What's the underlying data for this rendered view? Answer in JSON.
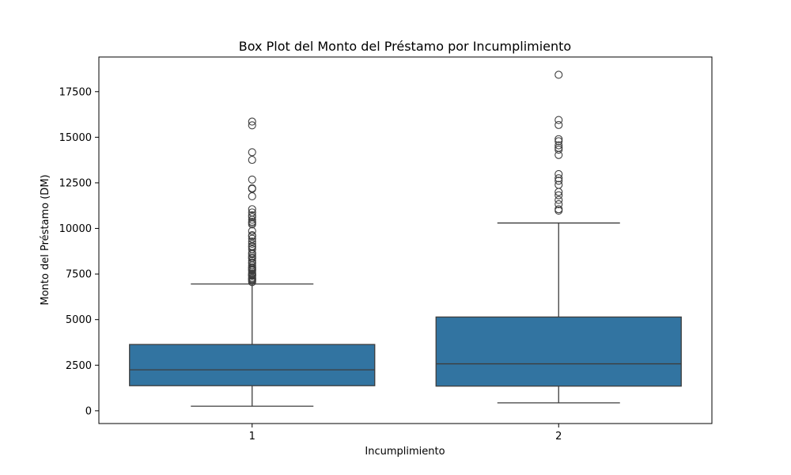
{
  "chart_data": {
    "type": "box",
    "title": "Box Plot del Monto del Préstamo por Incumplimiento",
    "xlabel": "Incumplimiento",
    "ylabel": "Monto del Préstamo (DM)",
    "ylim": [
      -700,
      19400
    ],
    "yticks": [
      0,
      2500,
      5000,
      7500,
      10000,
      12500,
      15000,
      17500
    ],
    "ytick_labels": [
      "0",
      "2500",
      "5000",
      "7500",
      "10000",
      "12500",
      "15000",
      "17500"
    ],
    "grid": false,
    "legend": "none",
    "colors": {
      "box_fill": "#3274a1",
      "line": "#3d3d3d",
      "frame": "#000000"
    },
    "categories": [
      "1",
      "2"
    ],
    "boxes": [
      {
        "category": "1",
        "whisker_low": 250,
        "q1": 1375,
        "median": 2245,
        "q3": 3635,
        "whisker_high": 6950,
        "outliers": [
          15857,
          15653,
          14179,
          13756,
          12680,
          12169,
          12204,
          11760,
          11054,
          10875,
          10722,
          10623,
          10477,
          10366,
          10297,
          10222,
          9857,
          9629,
          9572,
          9436,
          9283,
          9157,
          9034,
          8978,
          8858,
          8648,
          8588,
          8471,
          8386,
          8358,
          8229,
          8133,
          8086,
          7966,
          7865,
          7824,
          7758,
          7721,
          7685,
          7596,
          7511,
          7476,
          7432,
          7408,
          7393,
          7297,
          7238,
          7228,
          7174,
          7127,
          7057
        ]
      },
      {
        "category": "2",
        "whisker_low": 433,
        "q1": 1352,
        "median": 2574,
        "q3": 5142,
        "whisker_high": 10297,
        "outliers": [
          18424,
          15945,
          15672,
          14896,
          14782,
          14555,
          14421,
          14318,
          14027,
          12976,
          12749,
          12612,
          12389,
          11998,
          11816,
          11560,
          11328,
          11054,
          10974
        ]
      }
    ]
  }
}
